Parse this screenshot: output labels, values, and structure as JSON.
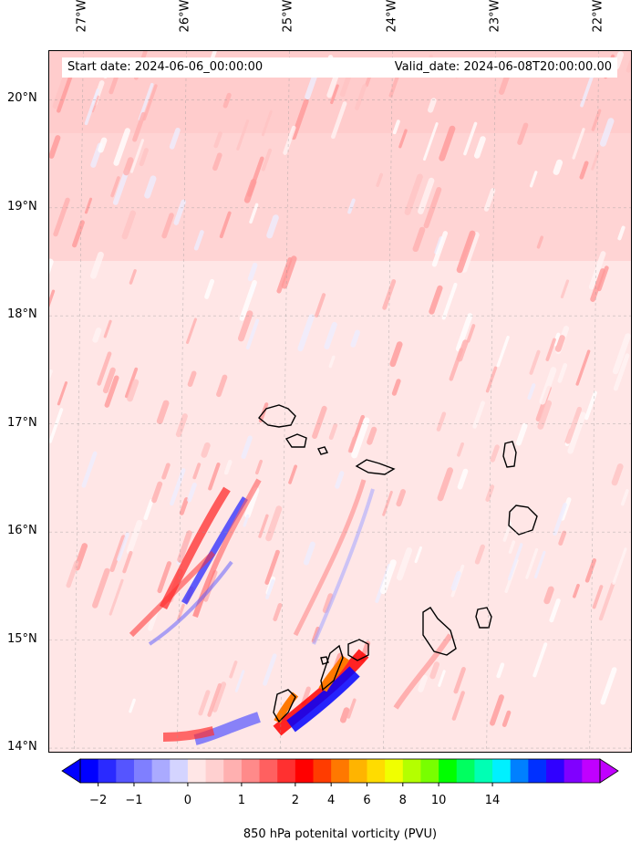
{
  "map": {
    "start_date": "Start date: 2024-06-06_00:00:00",
    "valid_date": "Valid_date: 2024-06-08T20:00:00.00",
    "lon_labels": [
      "27°W",
      "26°W",
      "25°W",
      "24°W",
      "23°W",
      "22°W"
    ],
    "lat_labels": [
      "20°N",
      "19°N",
      "18°N",
      "17°N",
      "16°N",
      "15°N",
      "14°N"
    ],
    "lon_values": [
      -27,
      -26,
      -25,
      -24,
      -23,
      -22
    ],
    "lat_values": [
      20,
      19,
      18,
      17,
      16,
      15,
      14
    ],
    "extent": {
      "lon_min": -27.33,
      "lon_max": -21.67,
      "lat_min": 13.95,
      "lat_max": 20.45
    },
    "gridlines": true,
    "background_color": "#ffe6e6"
  },
  "colorbar": {
    "label": "850 hPa potenital vorticity (PVU)",
    "tick_labels": [
      "−2",
      "−1",
      "0",
      "1",
      "2",
      "4",
      "6",
      "8",
      "10",
      "14"
    ],
    "extend": "both",
    "colors": [
      "#0000ff",
      "#2a2aff",
      "#5555ff",
      "#7f7fff",
      "#aaaaff",
      "#d4d4ff",
      "#ffe6e6",
      "#ffd0d0",
      "#ffb0b0",
      "#ff8a8a",
      "#ff6060",
      "#ff3030",
      "#ff0000",
      "#ff3c00",
      "#ff7800",
      "#ffb400",
      "#ffdc00",
      "#f0ff00",
      "#b4ff00",
      "#78ff00",
      "#00ff00",
      "#00ff60",
      "#00ffb4",
      "#00f0ff",
      "#0080ff",
      "#0030ff",
      "#3000ff",
      "#8000ff",
      "#c000ff"
    ]
  }
}
